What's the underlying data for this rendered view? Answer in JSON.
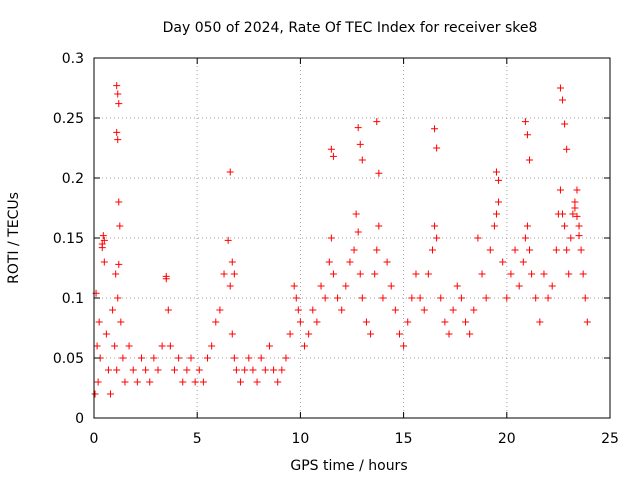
{
  "chart_data": {
    "type": "scatter",
    "title": "Day 050 of 2024, Rate Of TEC Index for receiver ske8",
    "xlabel": "GPS time / hours",
    "ylabel": "ROTI / TECUs",
    "xlim": [
      0,
      25
    ],
    "ylim": [
      0,
      0.3
    ],
    "xticks": [
      0,
      5,
      10,
      15,
      20,
      25
    ],
    "xtick_labels": [
      "0",
      "5",
      "10",
      "15",
      "20",
      "25"
    ],
    "yticks": [
      0,
      0.05,
      0.1,
      0.15,
      0.2,
      0.25,
      0.3
    ],
    "ytick_labels": [
      "0",
      "0.05",
      "0.1",
      "0.15",
      "0.2",
      "0.25",
      "0.3"
    ],
    "grid": true,
    "marker": "plus",
    "color": "#ff0000",
    "series": [
      {
        "name": "ROTI",
        "x": [
          0.05,
          0.1,
          0.15,
          0.2,
          0.25,
          0.3,
          0.4,
          0.5,
          0.6,
          0.7,
          0.8,
          0.9,
          1.0,
          1.05,
          1.1,
          1.15,
          1.2,
          1.3,
          1.4,
          1.5,
          1.7,
          1.9,
          2.1,
          2.3,
          2.5,
          2.7,
          2.9,
          3.1,
          3.3,
          3.5,
          3.6,
          3.7,
          3.9,
          4.1,
          4.3,
          4.5,
          4.7,
          4.9,
          5.1,
          5.3,
          5.5,
          5.7,
          5.9,
          6.1,
          6.3,
          6.5,
          6.6,
          6.7,
          6.8,
          6.9,
          7.1,
          7.3,
          7.5,
          7.7,
          7.9,
          8.1,
          8.3,
          8.5,
          8.7,
          8.9,
          9.1,
          9.3,
          9.5,
          9.7,
          9.8,
          9.9,
          10.0,
          10.2,
          10.4,
          10.6,
          10.8,
          11.0,
          11.2,
          11.4,
          11.5,
          11.6,
          11.8,
          12.0,
          12.2,
          12.4,
          12.6,
          12.7,
          12.8,
          12.9,
          13.0,
          13.2,
          13.4,
          13.6,
          13.7,
          13.8,
          14.0,
          14.2,
          14.4,
          14.6,
          14.8,
          15.0,
          15.2,
          15.4,
          15.6,
          15.8,
          16.0,
          16.2,
          16.4,
          16.5,
          16.6,
          16.8,
          17.0,
          17.2,
          17.4,
          17.6,
          17.8,
          18.0,
          18.2,
          18.4,
          18.6,
          18.8,
          19.0,
          19.2,
          19.4,
          19.5,
          19.6,
          19.8,
          20.0,
          20.2,
          20.4,
          20.6,
          20.8,
          20.9,
          21.0,
          21.1,
          21.2,
          21.4,
          21.6,
          21.8,
          22.0,
          22.2,
          22.4,
          22.5,
          22.6,
          22.7,
          22.8,
          22.9,
          23.0,
          23.1,
          23.2,
          23.3,
          23.4,
          23.5,
          23.6,
          23.7,
          23.8,
          23.9,
          1.1,
          1.15,
          1.2,
          1.1,
          1.15,
          0.45,
          0.5,
          0.4,
          1.2,
          1.25,
          3.5,
          6.6,
          6.7,
          6.8,
          12.8,
          12.9,
          13.0,
          13.7,
          13.8,
          11.5,
          11.6,
          16.5,
          16.6,
          20.9,
          21.0,
          21.1,
          22.6,
          22.7,
          22.8,
          22.9,
          19.5,
          19.6,
          23.3,
          23.4,
          23.5
        ],
        "y": [
          0.02,
          0.104,
          0.06,
          0.03,
          0.08,
          0.05,
          0.145,
          0.13,
          0.07,
          0.04,
          0.02,
          0.09,
          0.06,
          0.12,
          0.04,
          0.1,
          0.128,
          0.08,
          0.05,
          0.03,
          0.06,
          0.04,
          0.03,
          0.05,
          0.04,
          0.03,
          0.05,
          0.04,
          0.06,
          0.118,
          0.09,
          0.06,
          0.04,
          0.05,
          0.03,
          0.04,
          0.05,
          0.03,
          0.04,
          0.03,
          0.05,
          0.06,
          0.08,
          0.09,
          0.12,
          0.148,
          0.11,
          0.07,
          0.05,
          0.04,
          0.03,
          0.04,
          0.05,
          0.04,
          0.03,
          0.05,
          0.04,
          0.06,
          0.04,
          0.03,
          0.04,
          0.05,
          0.07,
          0.11,
          0.1,
          0.09,
          0.08,
          0.06,
          0.07,
          0.09,
          0.08,
          0.11,
          0.1,
          0.13,
          0.15,
          0.12,
          0.1,
          0.09,
          0.11,
          0.13,
          0.14,
          0.17,
          0.155,
          0.12,
          0.1,
          0.08,
          0.07,
          0.12,
          0.14,
          0.16,
          0.1,
          0.13,
          0.11,
          0.09,
          0.07,
          0.06,
          0.08,
          0.1,
          0.12,
          0.1,
          0.09,
          0.12,
          0.14,
          0.16,
          0.15,
          0.1,
          0.08,
          0.07,
          0.09,
          0.11,
          0.1,
          0.08,
          0.07,
          0.09,
          0.15,
          0.12,
          0.1,
          0.14,
          0.16,
          0.17,
          0.18,
          0.13,
          0.1,
          0.12,
          0.14,
          0.11,
          0.13,
          0.15,
          0.16,
          0.14,
          0.12,
          0.1,
          0.08,
          0.12,
          0.1,
          0.11,
          0.14,
          0.17,
          0.19,
          0.17,
          0.16,
          0.14,
          0.12,
          0.15,
          0.17,
          0.18,
          0.19,
          0.16,
          0.14,
          0.12,
          0.1,
          0.08,
          0.277,
          0.27,
          0.262,
          0.238,
          0.232,
          0.152,
          0.148,
          0.142,
          0.18,
          0.16,
          0.116,
          0.205,
          0.13,
          0.12,
          0.242,
          0.228,
          0.215,
          0.247,
          0.204,
          0.224,
          0.218,
          0.241,
          0.225,
          0.247,
          0.236,
          0.215,
          0.275,
          0.265,
          0.245,
          0.224,
          0.205,
          0.198,
          0.175,
          0.168,
          0.152
        ]
      }
    ]
  }
}
